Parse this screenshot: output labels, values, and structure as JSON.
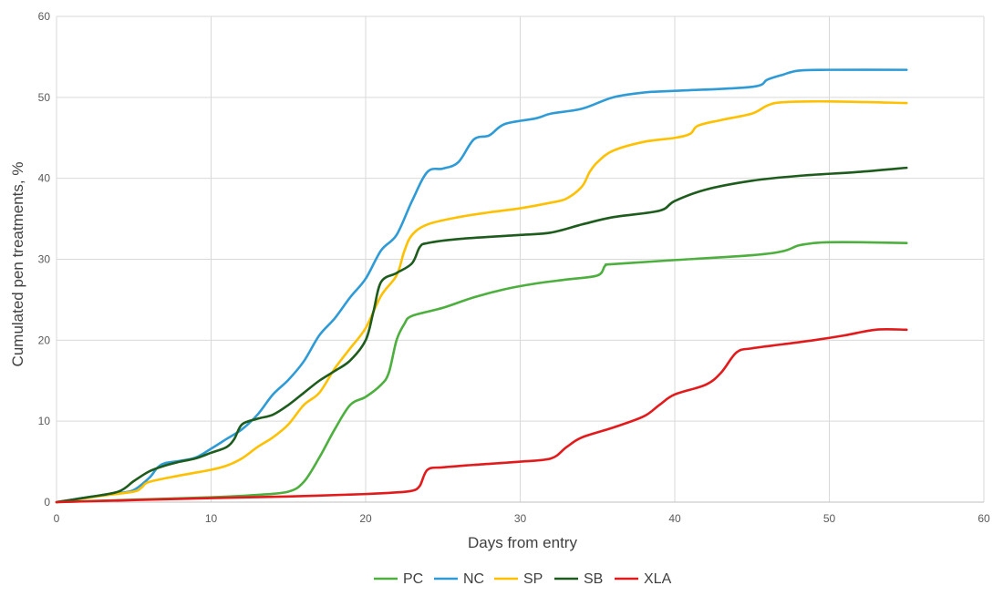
{
  "chart_data": {
    "type": "line",
    "title": "",
    "xlabel": "Days from entry",
    "ylabel": "Cumulated pen treatments, %",
    "xlim": [
      0,
      60
    ],
    "ylim": [
      0,
      60
    ],
    "x_ticks": [
      "0",
      "10",
      "20",
      "30",
      "40",
      "50",
      "60"
    ],
    "y_ticks": [
      "0",
      "10",
      "20",
      "30",
      "40",
      "50",
      "60"
    ],
    "grid": true,
    "legend_position": "bottom-center",
    "series": [
      {
        "name": "PC",
        "color": "#4caf3e",
        "points": [
          [
            0,
            0
          ],
          [
            5,
            0.3
          ],
          [
            10,
            0.6
          ],
          [
            13,
            0.9
          ],
          [
            15,
            1.3
          ],
          [
            16,
            2.5
          ],
          [
            17,
            5.5
          ],
          [
            18,
            9
          ],
          [
            19,
            12
          ],
          [
            20,
            13
          ],
          [
            21,
            14.5
          ],
          [
            21.5,
            16
          ],
          [
            22,
            20
          ],
          [
            22.5,
            22
          ],
          [
            23,
            23
          ],
          [
            25,
            24
          ],
          [
            27,
            25.3
          ],
          [
            29,
            26.3
          ],
          [
            31,
            27
          ],
          [
            33,
            27.5
          ],
          [
            35,
            28
          ],
          [
            35.5,
            29.2
          ],
          [
            36,
            29.4
          ],
          [
            40,
            29.9
          ],
          [
            45,
            30.5
          ],
          [
            47,
            31
          ],
          [
            48,
            31.7
          ],
          [
            49,
            32
          ],
          [
            50,
            32.1
          ],
          [
            52,
            32.1
          ],
          [
            55,
            32
          ]
        ]
      },
      {
        "name": "NC",
        "color": "#2e9bd6",
        "points": [
          [
            0,
            0
          ],
          [
            2,
            0.6
          ],
          [
            4,
            1.1
          ],
          [
            5,
            1.5
          ],
          [
            6,
            3
          ],
          [
            6.5,
            4.2
          ],
          [
            7,
            4.8
          ],
          [
            8,
            5.1
          ],
          [
            9,
            5.5
          ],
          [
            10,
            6.6
          ],
          [
            11,
            7.8
          ],
          [
            12,
            9
          ],
          [
            13,
            10.8
          ],
          [
            14,
            13.3
          ],
          [
            15,
            15.1
          ],
          [
            16,
            17.4
          ],
          [
            17,
            20.6
          ],
          [
            18,
            22.7
          ],
          [
            19,
            25.3
          ],
          [
            20,
            27.6
          ],
          [
            21,
            31.1
          ],
          [
            22,
            33
          ],
          [
            23,
            37.2
          ],
          [
            24,
            40.8
          ],
          [
            25,
            41.2
          ],
          [
            26,
            42
          ],
          [
            27,
            44.8
          ],
          [
            28,
            45.3
          ],
          [
            29,
            46.7
          ],
          [
            31,
            47.4
          ],
          [
            32,
            48
          ],
          [
            34,
            48.6
          ],
          [
            36,
            50
          ],
          [
            38,
            50.6
          ],
          [
            40,
            50.8
          ],
          [
            45,
            51.3
          ],
          [
            46,
            52.2
          ],
          [
            47,
            52.8
          ],
          [
            48,
            53.3
          ],
          [
            50,
            53.4
          ],
          [
            55,
            53.4
          ]
        ]
      },
      {
        "name": "SP",
        "color": "#ffc000",
        "points": [
          [
            0,
            0
          ],
          [
            3,
            0.8
          ],
          [
            5,
            1.3
          ],
          [
            5.5,
            1.8
          ],
          [
            6,
            2.5
          ],
          [
            8,
            3.3
          ],
          [
            10,
            4
          ],
          [
            11,
            4.5
          ],
          [
            12,
            5.4
          ],
          [
            13,
            6.8
          ],
          [
            14,
            8
          ],
          [
            15,
            9.6
          ],
          [
            16,
            12
          ],
          [
            17,
            13.5
          ],
          [
            18,
            16.5
          ],
          [
            19,
            19
          ],
          [
            20,
            21.5
          ],
          [
            21,
            25.5
          ],
          [
            22,
            28
          ],
          [
            22.5,
            31
          ],
          [
            23,
            33
          ],
          [
            24,
            34.3
          ],
          [
            26,
            35.2
          ],
          [
            28,
            35.8
          ],
          [
            30,
            36.3
          ],
          [
            32,
            37
          ],
          [
            33,
            37.5
          ],
          [
            34,
            39
          ],
          [
            34.5,
            40.8
          ],
          [
            35,
            42
          ],
          [
            36,
            43.4
          ],
          [
            38,
            44.5
          ],
          [
            40,
            45
          ],
          [
            41,
            45.5
          ],
          [
            41.5,
            46.5
          ],
          [
            43,
            47.2
          ],
          [
            45,
            48
          ],
          [
            46,
            49
          ],
          [
            47,
            49.4
          ],
          [
            50,
            49.5
          ],
          [
            55,
            49.3
          ]
        ]
      },
      {
        "name": "SB",
        "color": "#1e5c1e",
        "points": [
          [
            0,
            0
          ],
          [
            2,
            0.6
          ],
          [
            4,
            1.3
          ],
          [
            5,
            2.6
          ],
          [
            6,
            3.8
          ],
          [
            7,
            4.5
          ],
          [
            8,
            5
          ],
          [
            9,
            5.4
          ],
          [
            10,
            6.1
          ],
          [
            11,
            6.8
          ],
          [
            11.5,
            7.8
          ],
          [
            12,
            9.6
          ],
          [
            13,
            10.3
          ],
          [
            14,
            10.8
          ],
          [
            15,
            12
          ],
          [
            16,
            13.5
          ],
          [
            17,
            15
          ],
          [
            18,
            16.2
          ],
          [
            19,
            17.5
          ],
          [
            20,
            20
          ],
          [
            20.5,
            23.5
          ],
          [
            21,
            27.2
          ],
          [
            22,
            28.3
          ],
          [
            23,
            29.5
          ],
          [
            23.5,
            31.5
          ],
          [
            24,
            32
          ],
          [
            26,
            32.5
          ],
          [
            30,
            33
          ],
          [
            32,
            33.3
          ],
          [
            34,
            34.3
          ],
          [
            36,
            35.2
          ],
          [
            39,
            36
          ],
          [
            40,
            37.2
          ],
          [
            42,
            38.6
          ],
          [
            45,
            39.7
          ],
          [
            48,
            40.3
          ],
          [
            52,
            40.8
          ],
          [
            55,
            41.3
          ]
        ]
      },
      {
        "name": "XLA",
        "color": "#e31a1c",
        "points": [
          [
            0,
            0
          ],
          [
            10,
            0.5
          ],
          [
            15,
            0.7
          ],
          [
            20,
            1
          ],
          [
            22,
            1.2
          ],
          [
            23,
            1.4
          ],
          [
            23.5,
            2
          ],
          [
            24,
            4
          ],
          [
            25,
            4.3
          ],
          [
            27,
            4.6
          ],
          [
            30,
            5
          ],
          [
            32,
            5.4
          ],
          [
            33,
            6.8
          ],
          [
            34,
            8
          ],
          [
            36,
            9.2
          ],
          [
            38,
            10.6
          ],
          [
            39,
            12
          ],
          [
            40,
            13.3
          ],
          [
            42,
            14.5
          ],
          [
            43,
            16
          ],
          [
            44,
            18.5
          ],
          [
            45,
            19
          ],
          [
            47,
            19.5
          ],
          [
            49,
            20
          ],
          [
            51,
            20.6
          ],
          [
            53,
            21.3
          ],
          [
            55,
            21.3
          ]
        ]
      }
    ]
  }
}
